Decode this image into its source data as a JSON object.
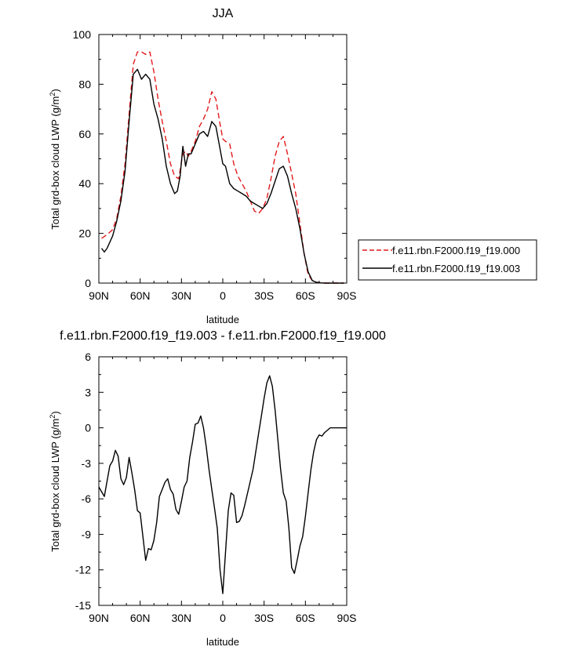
{
  "chart_data": [
    {
      "type": "line",
      "title": "JJA",
      "xlabel": "latitude",
      "ylabel": "Total grd-box cloud LWP (g/m²)",
      "xlim": [
        90,
        -90
      ],
      "ylim": [
        0,
        100
      ],
      "x_ticks": [
        {
          "v": 90,
          "label": "90N"
        },
        {
          "v": 60,
          "label": "60N"
        },
        {
          "v": 30,
          "label": "30N"
        },
        {
          "v": 0,
          "label": "0"
        },
        {
          "v": -30,
          "label": "30S"
        },
        {
          "v": -60,
          "label": "60S"
        },
        {
          "v": -90,
          "label": "90S"
        }
      ],
      "y_ticks": [
        {
          "v": 0,
          "label": "0"
        },
        {
          "v": 20,
          "label": "20"
        },
        {
          "v": 40,
          "label": "40"
        },
        {
          "v": 60,
          "label": "60"
        },
        {
          "v": 80,
          "label": "80"
        },
        {
          "v": 100,
          "label": "100"
        }
      ],
      "legend_position": "right",
      "series": [
        {
          "name": "f.e11.rbn.F2000.f19_f19.000",
          "color": "#e31a1c",
          "dash": "dashed",
          "x": [
            88,
            84,
            80,
            77,
            74,
            71,
            68,
            65,
            62,
            59,
            56,
            53,
            50,
            47,
            44,
            41,
            38,
            35,
            32,
            29,
            27,
            25,
            23,
            20,
            17,
            14,
            11,
            8,
            5,
            2,
            0,
            -2,
            -5,
            -8,
            -11,
            -14,
            -17,
            -20,
            -23,
            -26,
            -29,
            -32,
            -35,
            -38,
            -41,
            -44,
            -47,
            -50,
            -53,
            -56,
            -59,
            -62,
            -65,
            -68,
            -71,
            -74,
            -77,
            -80,
            -84,
            -88
          ],
          "y": [
            18,
            19.5,
            21.5,
            26,
            35,
            48,
            68,
            88,
            93,
            93,
            92,
            93,
            85,
            74,
            65,
            57,
            48,
            43,
            42,
            52,
            53,
            51,
            53,
            57,
            63,
            66,
            70,
            77,
            74,
            64,
            58,
            57,
            56,
            48,
            43,
            40,
            37,
            33,
            29,
            28,
            30,
            34,
            42,
            51,
            57,
            59,
            52,
            44,
            36,
            24,
            12,
            3.5,
            1,
            0.3,
            0.1,
            0,
            0,
            0,
            0,
            0
          ]
        },
        {
          "name": "f.e11.rbn.F2000.f19_f19.003",
          "color": "#000000",
          "dash": "solid",
          "x": [
            88,
            86,
            84,
            80,
            77,
            74,
            71,
            68,
            65,
            62,
            59,
            56,
            53,
            50,
            47,
            44,
            41,
            38,
            35,
            33,
            31,
            29,
            27,
            25,
            23,
            20,
            17,
            14,
            11,
            8,
            5,
            2,
            0,
            -2,
            -5,
            -8,
            -11,
            -14,
            -17,
            -20,
            -23,
            -26,
            -29,
            -32,
            -35,
            -38,
            -41,
            -44,
            -47,
            -50,
            -53,
            -56,
            -59,
            -62,
            -65,
            -68,
            -71,
            -74,
            -77,
            -80,
            -84,
            -88
          ],
          "y": [
            14,
            12.5,
            14,
            19,
            25,
            33,
            45,
            65,
            84,
            86,
            82,
            84,
            82,
            72,
            66,
            58,
            47,
            40,
            36,
            37,
            43,
            55,
            47,
            52,
            52,
            56,
            60,
            61,
            59,
            65,
            63,
            54,
            48,
            47,
            40,
            38,
            37,
            36,
            35,
            33,
            32,
            31,
            30,
            32,
            36,
            41,
            46,
            47,
            43,
            36,
            30,
            22,
            12,
            4.5,
            1,
            0.3,
            0.1,
            0,
            0,
            0,
            0,
            0
          ]
        }
      ]
    },
    {
      "type": "line",
      "title": "f.e11.rbn.F2000.f19_f19.003 - f.e11.rbn.F2000.f19_f19.000",
      "xlabel": "latitude",
      "ylabel": "Total grd-box cloud LWP (g/m²)",
      "xlim": [
        90,
        -90
      ],
      "ylim": [
        -15,
        6
      ],
      "x_ticks": [
        {
          "v": 90,
          "label": "90N"
        },
        {
          "v": 60,
          "label": "60N"
        },
        {
          "v": 30,
          "label": "30N"
        },
        {
          "v": 0,
          "label": "0"
        },
        {
          "v": -30,
          "label": "30S"
        },
        {
          "v": -60,
          "label": "60S"
        },
        {
          "v": -90,
          "label": "90S"
        }
      ],
      "y_ticks": [
        {
          "v": -15,
          "label": "-15"
        },
        {
          "v": -12,
          "label": "-12"
        },
        {
          "v": -9,
          "label": "-9"
        },
        {
          "v": -6,
          "label": "-6"
        },
        {
          "v": -3,
          "label": "-3"
        },
        {
          "v": 0,
          "label": "0"
        },
        {
          "v": 3,
          "label": "3"
        },
        {
          "v": 6,
          "label": "6"
        }
      ],
      "series": [
        {
          "name": "",
          "color": "#000000",
          "dash": "solid",
          "x": [
            90,
            88,
            86,
            84,
            82,
            80,
            78,
            76,
            74,
            72,
            70,
            68,
            66,
            64,
            62,
            60,
            58,
            56,
            54,
            52,
            50,
            48,
            46,
            44,
            42,
            40,
            38,
            36,
            34,
            32,
            30,
            28,
            26,
            24,
            22,
            20,
            18,
            16,
            14,
            12,
            10,
            8,
            6,
            4,
            2,
            0,
            -2,
            -4,
            -6,
            -8,
            -10,
            -12,
            -14,
            -16,
            -18,
            -20,
            -22,
            -24,
            -26,
            -28,
            -30,
            -32,
            -34,
            -36,
            -38,
            -40,
            -42,
            -44,
            -46,
            -48,
            -50,
            -52,
            -54,
            -56,
            -58,
            -60,
            -62,
            -64,
            -66,
            -68,
            -70,
            -72,
            -74,
            -76,
            -78,
            -80,
            -82,
            -84,
            -86,
            -88,
            -90
          ],
          "y": [
            -5,
            -5.4,
            -5.8,
            -4.5,
            -3.2,
            -2.8,
            -1.9,
            -2.4,
            -4.3,
            -4.8,
            -4.2,
            -2.5,
            -3.8,
            -5.2,
            -7,
            -7.2,
            -9.2,
            -11.2,
            -10.2,
            -10.3,
            -9.5,
            -8,
            -5.8,
            -5.2,
            -4.6,
            -4.3,
            -5.2,
            -5.6,
            -6.9,
            -7.3,
            -6.2,
            -5,
            -4.5,
            -2.5,
            -1.2,
            0.3,
            0.4,
            1,
            0,
            -1.6,
            -3.5,
            -5.2,
            -6.8,
            -8.5,
            -12,
            -14,
            -10.5,
            -7,
            -5.5,
            -5.7,
            -8,
            -7.9,
            -7.4,
            -6.5,
            -5.5,
            -4.5,
            -3.5,
            -2,
            -0.5,
            1,
            2.5,
            3.8,
            4.4,
            3.5,
            1.5,
            -1,
            -3.5,
            -5.5,
            -6.2,
            -8.5,
            -11.8,
            -12.3,
            -11.2,
            -10,
            -9.2,
            -7.5,
            -5.5,
            -3.5,
            -2,
            -1,
            -0.6,
            -0.7,
            -0.4,
            -0.2,
            0,
            0,
            0,
            0,
            0,
            0,
            0
          ]
        }
      ]
    }
  ]
}
